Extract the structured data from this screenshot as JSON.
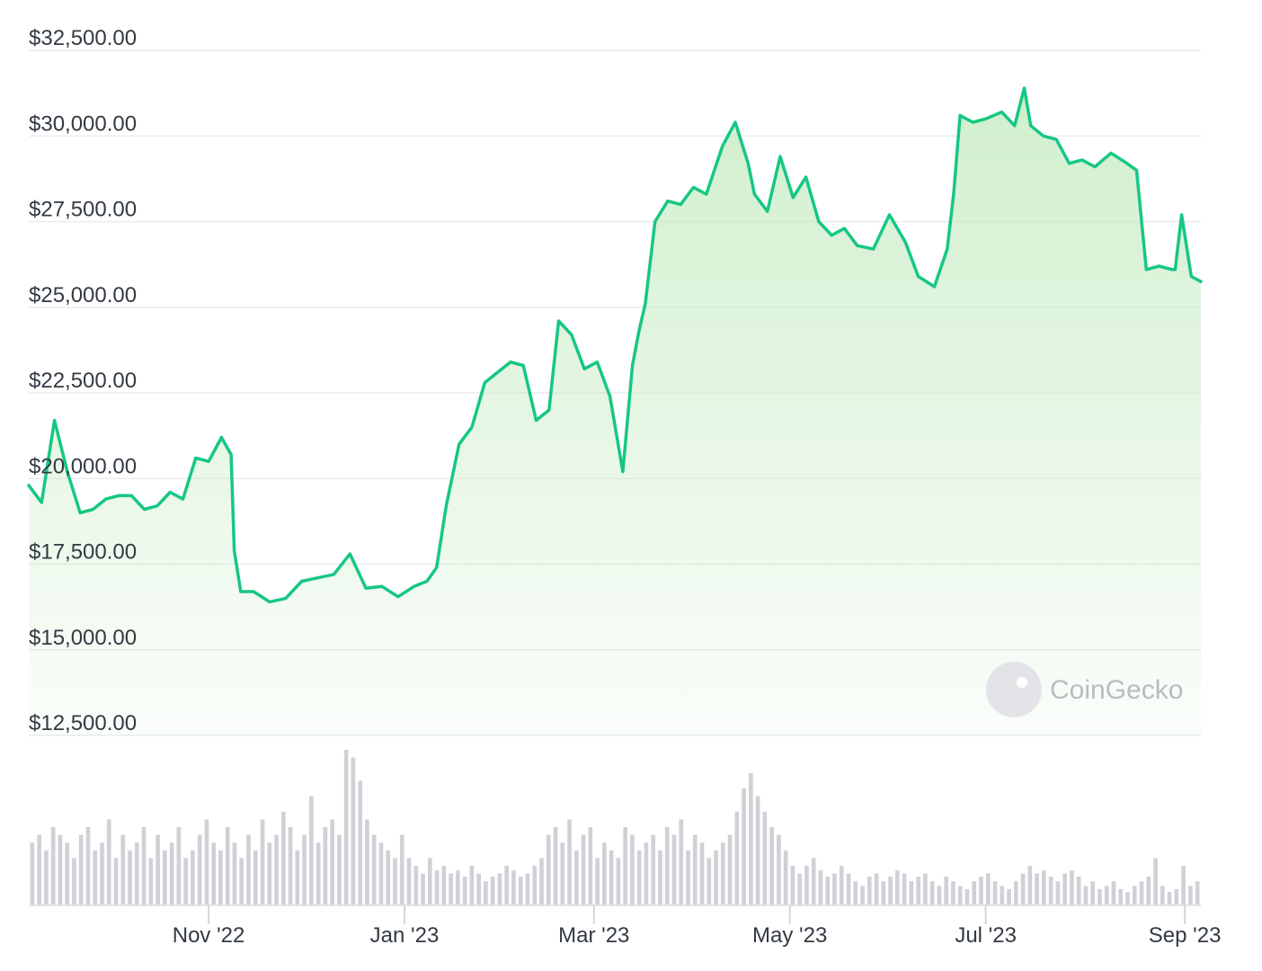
{
  "chart_data": {
    "type": "area",
    "title": "",
    "xlabel": "",
    "ylabel": "",
    "ylim": [
      12500,
      33000
    ],
    "y_ticks": [
      12500,
      15000,
      17500,
      20000,
      22500,
      25000,
      27500,
      30000,
      32500
    ],
    "y_tick_labels": [
      "$12,500.00",
      "$15,000.00",
      "$17,500.00",
      "$20,000.00",
      "$22,500.00",
      "$25,000.00",
      "$27,500.00",
      "$30,000.00",
      "$32,500.00"
    ],
    "x_ticks": [
      "2022-11-01",
      "2023-01-01",
      "2023-03-01",
      "2023-05-01",
      "2023-07-01",
      "2023-09-01"
    ],
    "x_tick_labels": [
      "Nov '22",
      "Jan '23",
      "Mar '23",
      "May '23",
      "Jul '23",
      "Sep '23"
    ],
    "xlim": [
      "2022-09-06",
      "2023-09-06"
    ],
    "grid": true,
    "line_color": "#16c784",
    "fill_color": "#c8ecc4",
    "volume_color": "#cfd1d6",
    "series": [
      {
        "x": [
          "2022-09-06",
          "2022-09-10",
          "2022-09-14",
          "2022-09-18",
          "2022-09-22",
          "2022-09-26",
          "2022-09-30",
          "2022-10-04",
          "2022-10-08",
          "2022-10-12",
          "2022-10-16",
          "2022-10-20",
          "2022-10-24",
          "2022-10-28",
          "2022-11-01",
          "2022-11-05",
          "2022-11-08",
          "2022-11-09",
          "2022-11-11",
          "2022-11-15",
          "2022-11-20",
          "2022-11-25",
          "2022-11-30",
          "2022-12-05",
          "2022-12-10",
          "2022-12-15",
          "2022-12-20",
          "2022-12-25",
          "2022-12-30",
          "2023-01-04",
          "2023-01-08",
          "2023-01-11",
          "2023-01-14",
          "2023-01-18",
          "2023-01-22",
          "2023-01-26",
          "2023-01-30",
          "2023-02-03",
          "2023-02-07",
          "2023-02-11",
          "2023-02-15",
          "2023-02-18",
          "2023-02-22",
          "2023-02-26",
          "2023-03-02",
          "2023-03-06",
          "2023-03-10",
          "2023-03-13",
          "2023-03-15",
          "2023-03-17",
          "2023-03-20",
          "2023-03-24",
          "2023-03-28",
          "2023-04-01",
          "2023-04-05",
          "2023-04-10",
          "2023-04-14",
          "2023-04-18",
          "2023-04-20",
          "2023-04-24",
          "2023-04-28",
          "2023-05-02",
          "2023-05-06",
          "2023-05-10",
          "2023-05-14",
          "2023-05-18",
          "2023-05-22",
          "2023-05-27",
          "2023-06-01",
          "2023-06-06",
          "2023-06-10",
          "2023-06-15",
          "2023-06-19",
          "2023-06-21",
          "2023-06-23",
          "2023-06-27",
          "2023-07-01",
          "2023-07-06",
          "2023-07-10",
          "2023-07-13",
          "2023-07-15",
          "2023-07-19",
          "2023-07-23",
          "2023-07-27",
          "2023-07-31",
          "2023-08-04",
          "2023-08-09",
          "2023-08-14",
          "2023-08-17",
          "2023-08-20",
          "2023-08-24",
          "2023-08-28",
          "2023-08-29",
          "2023-08-31",
          "2023-09-03",
          "2023-09-06"
        ],
        "y": [
          19800,
          19300,
          21700,
          20200,
          19000,
          19100,
          19400,
          19500,
          19500,
          19100,
          19200,
          19600,
          19400,
          20600,
          20500,
          21200,
          20700,
          17900,
          16700,
          16700,
          16400,
          16500,
          17000,
          17100,
          17200,
          17800,
          16800,
          16850,
          16550,
          16850,
          17000,
          17400,
          19200,
          21000,
          21500,
          22800,
          23100,
          23400,
          23300,
          21700,
          22000,
          24600,
          24200,
          23200,
          23400,
          22400,
          20200,
          23300,
          24300,
          25100,
          27500,
          28100,
          28000,
          28500,
          28300,
          29700,
          30400,
          29200,
          28300,
          27800,
          29400,
          28200,
          28800,
          27500,
          27100,
          27300,
          26800,
          26700,
          27700,
          26900,
          25900,
          25600,
          26700,
          28300,
          30600,
          30400,
          30500,
          30700,
          30300,
          31400,
          30300,
          30000,
          29900,
          29200,
          29300,
          29100,
          29500,
          29200,
          29000,
          26100,
          26200,
          26100,
          26100,
          27700,
          25900,
          25750
        ]
      }
    ],
    "volume": {
      "note_units": "relative",
      "values": [
        0.4,
        0.45,
        0.35,
        0.5,
        0.45,
        0.4,
        0.3,
        0.45,
        0.5,
        0.35,
        0.4,
        0.55,
        0.3,
        0.45,
        0.35,
        0.4,
        0.5,
        0.3,
        0.45,
        0.35,
        0.4,
        0.5,
        0.3,
        0.35,
        0.45,
        0.55,
        0.4,
        0.35,
        0.5,
        0.4,
        0.3,
        0.45,
        0.35,
        0.55,
        0.4,
        0.45,
        0.6,
        0.5,
        0.35,
        0.45,
        0.7,
        0.4,
        0.5,
        0.55,
        0.45,
        1.0,
        0.95,
        0.8,
        0.55,
        0.45,
        0.4,
        0.35,
        0.3,
        0.45,
        0.3,
        0.25,
        0.2,
        0.3,
        0.22,
        0.25,
        0.2,
        0.22,
        0.18,
        0.25,
        0.2,
        0.15,
        0.18,
        0.2,
        0.25,
        0.22,
        0.18,
        0.2,
        0.25,
        0.3,
        0.45,
        0.5,
        0.4,
        0.55,
        0.35,
        0.45,
        0.5,
        0.3,
        0.4,
        0.35,
        0.3,
        0.5,
        0.45,
        0.35,
        0.4,
        0.45,
        0.35,
        0.5,
        0.45,
        0.55,
        0.35,
        0.45,
        0.4,
        0.3,
        0.35,
        0.4,
        0.45,
        0.6,
        0.75,
        0.85,
        0.7,
        0.6,
        0.5,
        0.45,
        0.35,
        0.25,
        0.2,
        0.25,
        0.3,
        0.22,
        0.18,
        0.2,
        0.25,
        0.2,
        0.15,
        0.12,
        0.18,
        0.2,
        0.15,
        0.18,
        0.22,
        0.2,
        0.15,
        0.18,
        0.2,
        0.15,
        0.12,
        0.18,
        0.15,
        0.12,
        0.1,
        0.15,
        0.18,
        0.2,
        0.15,
        0.12,
        0.1,
        0.15,
        0.2,
        0.25,
        0.2,
        0.22,
        0.18,
        0.15,
        0.2,
        0.22,
        0.18,
        0.12,
        0.15,
        0.1,
        0.12,
        0.15,
        0.1,
        0.08,
        0.12,
        0.15,
        0.18,
        0.3,
        0.12,
        0.08,
        0.1,
        0.25,
        0.12,
        0.15
      ]
    },
    "watermark": "CoinGecko"
  }
}
